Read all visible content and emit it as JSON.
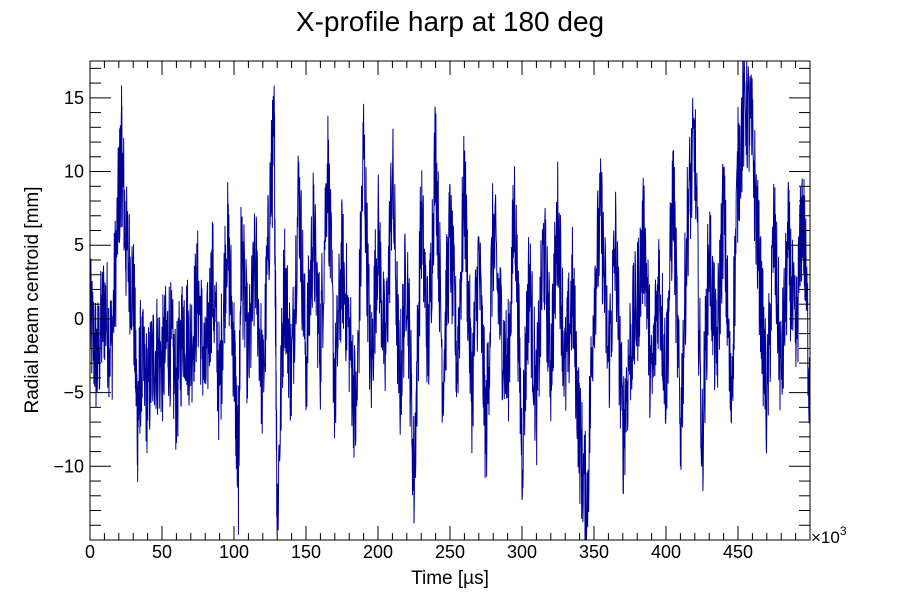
{
  "chart_data": {
    "type": "line",
    "title": "X-profile harp at 180 deg",
    "xlabel": "Time [µs]",
    "ylabel": "Radial beam centroid [mm]",
    "x_exponent_label": "×10",
    "x_exponent_power": "3",
    "xlim": [
      0,
      500000
    ],
    "ylim": [
      -15,
      17.5
    ],
    "x_ticks": [
      {
        "value": 0,
        "label": "0"
      },
      {
        "value": 50000,
        "label": "50"
      },
      {
        "value": 100000,
        "label": "100"
      },
      {
        "value": 150000,
        "label": "150"
      },
      {
        "value": 200000,
        "label": "200"
      },
      {
        "value": 250000,
        "label": "250"
      },
      {
        "value": 300000,
        "label": "300"
      },
      {
        "value": 350000,
        "label": "350"
      },
      {
        "value": 400000,
        "label": "400"
      },
      {
        "value": 450000,
        "label": "450"
      }
    ],
    "y_ticks": [
      {
        "value": -10,
        "label": "−10"
      },
      {
        "value": -5,
        "label": "−5"
      },
      {
        "value": 0,
        "label": "0"
      },
      {
        "value": 5,
        "label": "5"
      },
      {
        "value": 10,
        "label": "10"
      },
      {
        "value": 15,
        "label": "15"
      }
    ],
    "grid": false,
    "series": [
      {
        "color": "#000099",
        "x": [
          0,
          5000,
          10000,
          15000,
          20000,
          22000,
          25000,
          30000,
          33000,
          35000,
          40000,
          45000,
          50000,
          55000,
          60000,
          65000,
          70000,
          75000,
          80000,
          85000,
          90000,
          95000,
          100000,
          103000,
          105000,
          110000,
          115000,
          120000,
          125000,
          128000,
          130000,
          135000,
          140000,
          145000,
          150000,
          155000,
          160000,
          165000,
          170000,
          175000,
          180000,
          185000,
          190000,
          195000,
          200000,
          205000,
          210000,
          215000,
          220000,
          225000,
          230000,
          235000,
          240000,
          245000,
          250000,
          255000,
          260000,
          265000,
          270000,
          275000,
          280000,
          285000,
          290000,
          295000,
          300000,
          305000,
          310000,
          315000,
          320000,
          325000,
          330000,
          335000,
          340000,
          345000,
          350000,
          355000,
          360000,
          365000,
          370000,
          375000,
          380000,
          385000,
          390000,
          395000,
          400000,
          405000,
          410000,
          415000,
          420000,
          425000,
          430000,
          435000,
          440000,
          445000,
          450000,
          455000,
          460000,
          465000,
          470000,
          475000,
          480000,
          485000,
          490000,
          495000,
          500000
        ],
        "y": [
          0,
          -3,
          1,
          -2,
          8,
          11.5,
          5,
          2,
          -7,
          -3,
          -5,
          -2,
          -3,
          -1,
          -5,
          0,
          -2,
          2,
          -4,
          3,
          -5,
          6,
          -2,
          -11,
          5,
          -3,
          4,
          -5,
          8,
          12.5,
          -13.5,
          3,
          -4,
          9,
          -3,
          6,
          -2,
          11,
          -5,
          4,
          -1,
          -7,
          12,
          -4,
          6,
          -3,
          10,
          -5,
          4,
          -11,
          7,
          -2,
          12,
          -4,
          6,
          -3,
          9,
          -5,
          4,
          -8,
          6,
          0,
          -4,
          8,
          -9,
          3,
          -6,
          5,
          -3,
          7,
          -4,
          2,
          -8,
          -13,
          2,
          7,
          -3,
          5,
          -8,
          -2,
          1,
          6,
          -5,
          3,
          -4,
          9,
          -8,
          7,
          12,
          -9,
          5,
          -3,
          8,
          -6,
          10,
          15,
          12,
          3,
          -6,
          6,
          -4,
          5,
          -2,
          8,
          -5
        ]
      }
    ]
  }
}
